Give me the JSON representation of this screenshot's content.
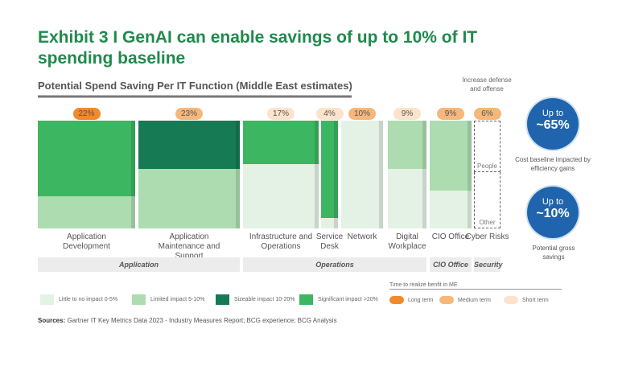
{
  "title": "Exhibit 3 I GenAI can enable savings of up to 10% of IT spending baseline",
  "chart_data": {
    "type": "bar",
    "subtitle": "Potential Spend Saving Per IT Function (Middle East estimates)",
    "categories": [
      "Application Development",
      "Application Maintenance and Support",
      "Infrastructure and Operations",
      "Service Desk",
      "Network",
      "Digital Workplace",
      "CIO Office",
      "Cyber Risks"
    ],
    "savings": [
      "22%",
      "23%",
      "17%",
      "4%",
      "10%",
      "9%",
      "9%",
      "6%"
    ],
    "horizon": [
      "long",
      "medium",
      "short",
      "short",
      "medium",
      "short",
      "medium",
      "medium"
    ],
    "segments": [
      [
        {
          "impact": "significant",
          "share": 0.7
        },
        {
          "impact": "limited",
          "share": 0.3
        }
      ],
      [
        {
          "impact": "sizeable",
          "share": 0.45
        },
        {
          "impact": "limited",
          "share": 0.55
        }
      ],
      [
        {
          "impact": "significant",
          "share": 0.4
        },
        {
          "impact": "little",
          "share": 0.6
        }
      ],
      [
        {
          "impact": "significant",
          "share": 0.9
        },
        {
          "impact": "little",
          "share": 0.1
        }
      ],
      [
        {
          "impact": "little",
          "share": 1.0
        }
      ],
      [
        {
          "impact": "limited",
          "share": 0.45
        },
        {
          "impact": "little",
          "share": 0.55
        }
      ],
      [
        {
          "impact": "limited",
          "share": 0.65
        },
        {
          "impact": "little",
          "share": 0.35
        }
      ],
      [
        {
          "impact": "people",
          "share": 0.48
        },
        {
          "impact": "other",
          "share": 0.52
        }
      ]
    ],
    "cyber_inner_labels": [
      "People",
      "Other"
    ],
    "groups": [
      {
        "label": "Application"
      },
      {
        "label": "Operations"
      },
      {
        "label": "CIO Office"
      },
      {
        "label": "Security"
      }
    ],
    "defense_note": "Increase defense and offense",
    "legend_impact": [
      {
        "key": "little",
        "label": "Little to no impact 0-5%",
        "color": "#e3f2e4"
      },
      {
        "key": "limited",
        "label": "Limited impact 5-10%",
        "color": "#acdcb0"
      },
      {
        "key": "sizeable",
        "label": "Sizeable impact 10-20%",
        "color": "#167a55"
      },
      {
        "key": "significant",
        "label": "Significant impact >20%",
        "color": "#3cb661"
      }
    ],
    "legend_time_title": "Time to realize benfit in ME",
    "legend_time": [
      {
        "key": "long",
        "label": "Long term",
        "color": "#f08a2c"
      },
      {
        "key": "medium",
        "label": "Medium term",
        "color": "#f6b77a"
      },
      {
        "key": "short",
        "label": "Short term",
        "color": "#fde3cc"
      }
    ]
  },
  "callouts": [
    {
      "prefix": "Up to",
      "value": "~65%",
      "note": "Cost baseline impacted by efficiency gains"
    },
    {
      "prefix": "Up to",
      "value": "~10%",
      "note": "Potential gross savings"
    }
  ],
  "sources_label": "Sources:",
  "sources": "Gartner IT Key Metrics Data 2023 - Industry Measures Report; BCG experience; BCG Analysis"
}
